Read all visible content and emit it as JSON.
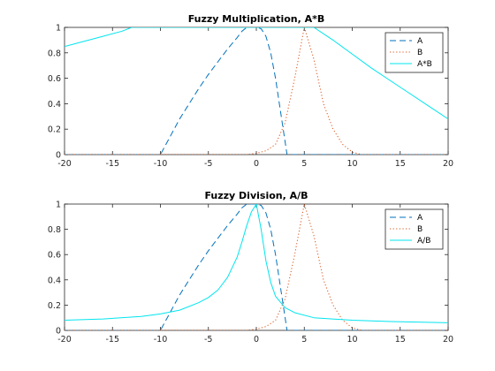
{
  "chart_data": [
    {
      "type": "line",
      "title": "Fuzzy Multiplication, A*B",
      "xlim": [
        -20,
        20
      ],
      "ylim": [
        0,
        1
      ],
      "xticks": [
        -20,
        -15,
        -10,
        -5,
        0,
        5,
        10,
        15,
        20
      ],
      "yticks": [
        0,
        0.2,
        0.4,
        0.6,
        0.8,
        1
      ],
      "xtick_labels": [
        "-20",
        "-15",
        "-10",
        "-5",
        "0",
        "5",
        "10",
        "15",
        "20"
      ],
      "ytick_labels": [
        "0",
        "0.2",
        "0.4",
        "0.6",
        "0.8",
        "1"
      ],
      "grid": false,
      "legend_position": "top-right",
      "series": [
        {
          "name": "A",
          "color": "#0072BD",
          "style": "dashed",
          "points": [
            [
              -20,
              0
            ],
            [
              -10,
              0
            ],
            [
              -9,
              0.14
            ],
            [
              -8,
              0.28
            ],
            [
              -7,
              0.4
            ],
            [
              -6,
              0.52
            ],
            [
              -5,
              0.63
            ],
            [
              -4,
              0.73
            ],
            [
              -3,
              0.83
            ],
            [
              -2,
              0.92
            ],
            [
              -1.5,
              0.97
            ],
            [
              -1,
              1
            ],
            [
              0,
              1
            ],
            [
              0.5,
              0.99
            ],
            [
              1,
              0.93
            ],
            [
              1.5,
              0.8
            ],
            [
              2,
              0.6
            ],
            [
              2.5,
              0.35
            ],
            [
              3,
              0.1
            ],
            [
              3.2,
              0
            ],
            [
              20,
              0
            ]
          ]
        },
        {
          "name": "B",
          "color": "#D95319",
          "style": "dotted",
          "points": [
            [
              -20,
              0
            ],
            [
              -1,
              0
            ],
            [
              0,
              0.01
            ],
            [
              1,
              0.03
            ],
            [
              2,
              0.08
            ],
            [
              3,
              0.25
            ],
            [
              4,
              0.6
            ],
            [
              5,
              1
            ],
            [
              6,
              0.75
            ],
            [
              7,
              0.4
            ],
            [
              8,
              0.2
            ],
            [
              9,
              0.08
            ],
            [
              10,
              0.02
            ],
            [
              11,
              0
            ],
            [
              20,
              0
            ]
          ]
        },
        {
          "name": "A*B",
          "color": "#00E5EE",
          "style": "solid",
          "points": [
            [
              -20,
              0.85
            ],
            [
              -18,
              0.89
            ],
            [
              -16,
              0.93
            ],
            [
              -14,
              0.97
            ],
            [
              -13,
              1
            ],
            [
              0,
              1
            ],
            [
              6,
              1
            ],
            [
              8,
              0.9
            ],
            [
              10,
              0.79
            ],
            [
              12,
              0.68
            ],
            [
              14,
              0.58
            ],
            [
              16,
              0.48
            ],
            [
              18,
              0.38
            ],
            [
              20,
              0.28
            ]
          ]
        }
      ]
    },
    {
      "type": "line",
      "title": "Fuzzy Division, A/B",
      "xlim": [
        -20,
        20
      ],
      "ylim": [
        0,
        1
      ],
      "xticks": [
        -20,
        -15,
        -10,
        -5,
        0,
        5,
        10,
        15,
        20
      ],
      "yticks": [
        0,
        0.2,
        0.4,
        0.6,
        0.8,
        1
      ],
      "xtick_labels": [
        "-20",
        "-15",
        "-10",
        "-5",
        "0",
        "5",
        "10",
        "15",
        "20"
      ],
      "ytick_labels": [
        "0",
        "0.2",
        "0.4",
        "0.6",
        "0.8",
        "1"
      ],
      "grid": false,
      "legend_position": "top-right",
      "series": [
        {
          "name": "A",
          "color": "#0072BD",
          "style": "dashed",
          "points": [
            [
              -20,
              0
            ],
            [
              -10,
              0
            ],
            [
              -9,
              0.14
            ],
            [
              -8,
              0.28
            ],
            [
              -7,
              0.4
            ],
            [
              -6,
              0.52
            ],
            [
              -5,
              0.63
            ],
            [
              -4,
              0.73
            ],
            [
              -3,
              0.83
            ],
            [
              -2,
              0.92
            ],
            [
              -1.5,
              0.97
            ],
            [
              -1,
              1
            ],
            [
              0,
              1
            ],
            [
              0.5,
              0.99
            ],
            [
              1,
              0.93
            ],
            [
              1.5,
              0.8
            ],
            [
              2,
              0.6
            ],
            [
              2.5,
              0.35
            ],
            [
              3,
              0.1
            ],
            [
              3.2,
              0
            ],
            [
              20,
              0
            ]
          ]
        },
        {
          "name": "B",
          "color": "#D95319",
          "style": "dotted",
          "points": [
            [
              -20,
              0
            ],
            [
              -1,
              0
            ],
            [
              0,
              0.01
            ],
            [
              1,
              0.03
            ],
            [
              2,
              0.08
            ],
            [
              3,
              0.25
            ],
            [
              4,
              0.6
            ],
            [
              5,
              1
            ],
            [
              6,
              0.75
            ],
            [
              7,
              0.4
            ],
            [
              8,
              0.2
            ],
            [
              9,
              0.08
            ],
            [
              10,
              0.02
            ],
            [
              11,
              0
            ],
            [
              20,
              0
            ]
          ]
        },
        {
          "name": "A/B",
          "color": "#00E5EE",
          "style": "solid",
          "points": [
            [
              -20,
              0.08
            ],
            [
              -16,
              0.09
            ],
            [
              -12,
              0.11
            ],
            [
              -10,
              0.13
            ],
            [
              -8,
              0.16
            ],
            [
              -6,
              0.22
            ],
            [
              -5,
              0.26
            ],
            [
              -4,
              0.32
            ],
            [
              -3,
              0.42
            ],
            [
              -2,
              0.58
            ],
            [
              -1.5,
              0.7
            ],
            [
              -1,
              0.83
            ],
            [
              -0.5,
              0.94
            ],
            [
              0,
              1
            ],
            [
              0.5,
              0.8
            ],
            [
              1,
              0.55
            ],
            [
              1.5,
              0.38
            ],
            [
              2,
              0.27
            ],
            [
              3,
              0.18
            ],
            [
              4,
              0.14
            ],
            [
              6,
              0.1
            ],
            [
              10,
              0.08
            ],
            [
              14,
              0.07
            ],
            [
              20,
              0.06
            ]
          ]
        }
      ]
    }
  ]
}
